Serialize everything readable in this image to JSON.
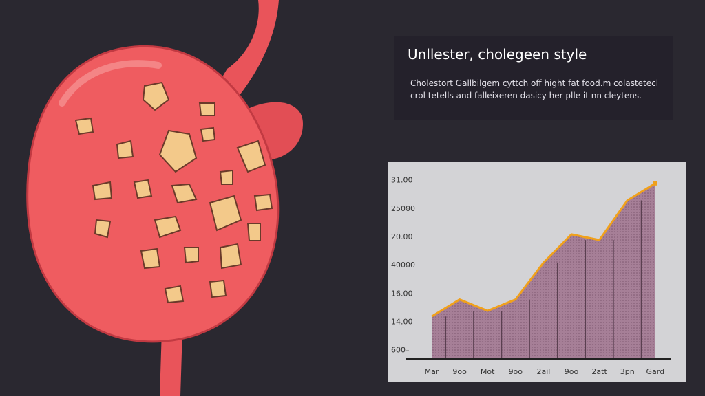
{
  "chart_data": {
    "type": "area",
    "title": "Unllester, cholegeen style",
    "subtitle": [
      "Cholestort Gallbilgem cyttch off hight fat food.m colastetecl",
      "crol tetells and falleixeren dasicy her plle it nn cleytens."
    ],
    "categories": [
      "Mar",
      "9oo",
      "Mot",
      "9oo",
      "2ail",
      "9oo",
      "2att",
      "3pn",
      "Gard"
    ],
    "values": [
      1.2,
      1.8,
      1.4,
      1.8,
      3.1,
      4.1,
      3.9,
      5.3,
      5.9
    ],
    "color": "#f0a11c",
    "fill": "#a67f97",
    "ylim": [
      -0.3,
      6.6
    ],
    "yticks": [
      {
        "value": 0,
        "label": "600"
      },
      {
        "value": 1,
        "label": "14.00"
      },
      {
        "value": 2,
        "label": "16.00"
      },
      {
        "value": 3,
        "label": "40000"
      },
      {
        "value": 4,
        "label": "20.00"
      },
      {
        "value": 5,
        "label": "25000"
      },
      {
        "value": 6,
        "label": "31.00"
      }
    ]
  }
}
